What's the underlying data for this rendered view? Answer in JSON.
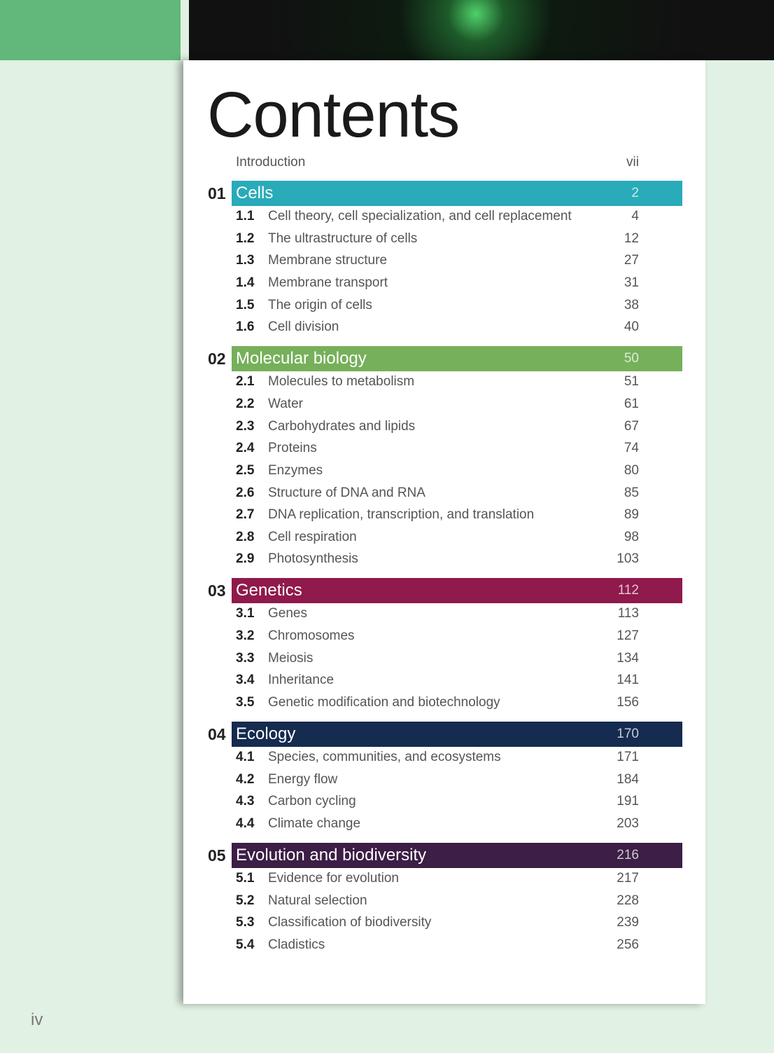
{
  "title": "Contents",
  "introduction": {
    "label": "Introduction",
    "page": "vii"
  },
  "chapters": [
    {
      "number": "01",
      "title": "Cells",
      "page": "2",
      "sections": [
        {
          "number": "1.1",
          "title": "Cell theory, cell specialization, and cell replacement",
          "page": "4"
        },
        {
          "number": "1.2",
          "title": "The ultrastructure of cells",
          "page": "12"
        },
        {
          "number": "1.3",
          "title": "Membrane structure",
          "page": "27"
        },
        {
          "number": "1.4",
          "title": "Membrane transport",
          "page": "31"
        },
        {
          "number": "1.5",
          "title": "The origin of cells",
          "page": "38"
        },
        {
          "number": "1.6",
          "title": "Cell division",
          "page": "40"
        }
      ]
    },
    {
      "number": "02",
      "title": "Molecular biology",
      "page": "50",
      "sections": [
        {
          "number": "2.1",
          "title": "Molecules to metabolism",
          "page": "51"
        },
        {
          "number": "2.2",
          "title": "Water",
          "page": "61"
        },
        {
          "number": "2.3",
          "title": "Carbohydrates and lipids",
          "page": "67"
        },
        {
          "number": "2.4",
          "title": "Proteins",
          "page": "74"
        },
        {
          "number": "2.5",
          "title": "Enzymes",
          "page": "80"
        },
        {
          "number": "2.6",
          "title": "Structure of DNA and RNA",
          "page": "85"
        },
        {
          "number": "2.7",
          "title": "DNA replication, transcription, and translation",
          "page": "89"
        },
        {
          "number": "2.8",
          "title": "Cell respiration",
          "page": "98"
        },
        {
          "number": "2.9",
          "title": "Photosynthesis",
          "page": "103"
        }
      ]
    },
    {
      "number": "03",
      "title": "Genetics",
      "page": "112",
      "sections": [
        {
          "number": "3.1",
          "title": "Genes",
          "page": "113"
        },
        {
          "number": "3.2",
          "title": "Chromosomes",
          "page": "127"
        },
        {
          "number": "3.3",
          "title": "Meiosis",
          "page": "134"
        },
        {
          "number": "3.4",
          "title": "Inheritance",
          "page": "141"
        },
        {
          "number": "3.5",
          "title": "Genetic modification and biotechnology",
          "page": "156"
        }
      ]
    },
    {
      "number": "04",
      "title": "Ecology",
      "page": "170",
      "sections": [
        {
          "number": "4.1",
          "title": "Species, communities, and ecosystems",
          "page": "171"
        },
        {
          "number": "4.2",
          "title": "Energy flow",
          "page": "184"
        },
        {
          "number": "4.3",
          "title": "Carbon cycling",
          "page": "191"
        },
        {
          "number": "4.4",
          "title": "Climate change",
          "page": "203"
        }
      ]
    },
    {
      "number": "05",
      "title": "Evolution and biodiversity",
      "page": "216",
      "sections": [
        {
          "number": "5.1",
          "title": "Evidence for evolution",
          "page": "217"
        },
        {
          "number": "5.2",
          "title": "Natural selection",
          "page": "228"
        },
        {
          "number": "5.3",
          "title": "Classification of biodiversity",
          "page": "239"
        },
        {
          "number": "5.4",
          "title": "Cladistics",
          "page": "256"
        }
      ]
    }
  ],
  "page_number": "iv"
}
